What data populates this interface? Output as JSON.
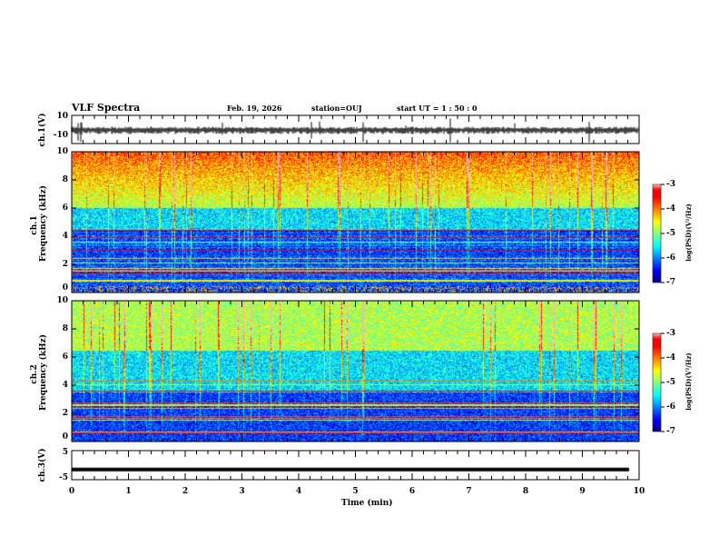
{
  "header": {
    "title": "VLF Spectra",
    "date": "Feb. 19, 2026",
    "station": "station=OUJ",
    "start": "start  UT =   1 : 50 : 0"
  },
  "chart_data": [
    {
      "type": "line",
      "name": "ch.1 waveform",
      "ylabel": "ch.1(V)",
      "ylim": [
        -10,
        10
      ],
      "yticks": [
        "10",
        "-10"
      ],
      "xlim": [
        0,
        10
      ]
    },
    {
      "type": "heatmap",
      "name": "ch.1 spectrogram",
      "ylabel": "ch.1\nFrequency (kHz)",
      "ylabel_lines": [
        "ch.1",
        "Frequency (kHz)"
      ],
      "ylim": [
        0,
        10
      ],
      "yticks": [
        "0",
        "2",
        "4",
        "6",
        "8",
        "10"
      ],
      "xlim": [
        0,
        10
      ],
      "colorbar": {
        "label": "log(PSD)(V²/Hz)",
        "range": [
          -7,
          -3
        ],
        "ticks": [
          "-3",
          "-4",
          "-5",
          "-6",
          "-7"
        ]
      }
    },
    {
      "type": "heatmap",
      "name": "ch.2 spectrogram",
      "ylabel_lines": [
        "ch.2",
        "Frequency (kHz)"
      ],
      "ylim": [
        0,
        10
      ],
      "yticks": [
        "0",
        "2",
        "4",
        "6",
        "8",
        "10"
      ],
      "xlim": [
        0,
        10
      ],
      "colorbar": {
        "label": "log(PSD)(V²/Hz)",
        "range": [
          -7,
          -3
        ],
        "ticks": [
          "-3",
          "-4",
          "-5",
          "-6",
          "-7"
        ]
      }
    },
    {
      "type": "line",
      "name": "ch.3 waveform",
      "ylabel": "ch.3(V)",
      "ylim": [
        -5,
        5
      ],
      "yticks": [
        "5",
        "-5"
      ],
      "value": -1.5,
      "xlim": [
        0,
        10
      ],
      "xlabel": "Time  (min)",
      "xticks": [
        "0",
        "1",
        "2",
        "3",
        "4",
        "5",
        "6",
        "7",
        "8",
        "9",
        "10"
      ]
    }
  ]
}
